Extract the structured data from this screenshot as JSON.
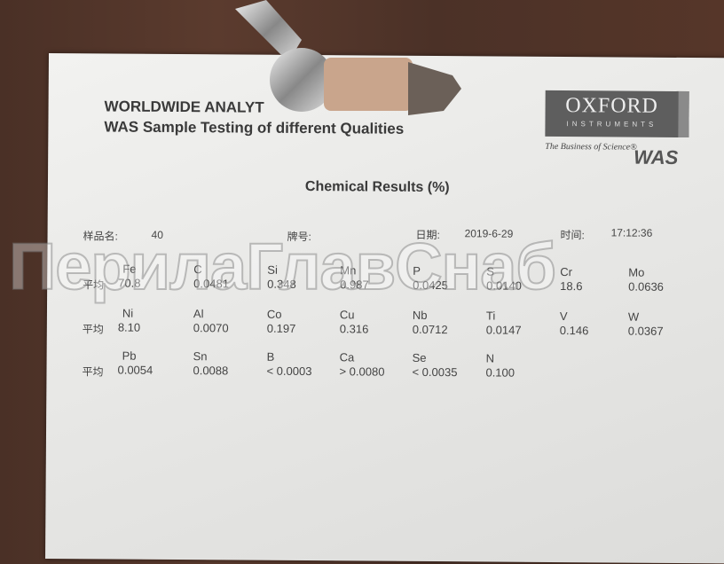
{
  "document": {
    "title_line1": "WORLDWIDE ANALYT",
    "title_line2": "WAS Sample Testing of different Qualities",
    "logo": {
      "name": "OXFORD",
      "sub": "INSTRUMENTS",
      "tagline": "The Business of Science®",
      "mark": "WAS"
    },
    "heading": "Chemical Results   (%)",
    "meta": {
      "sample_label": "样品名:",
      "sample_value": "40",
      "grade_label": "牌号:",
      "grade_value": "",
      "date_label": "日期:",
      "date_value": "2019-6-29",
      "time_label": "时间:",
      "time_value": "17:12:36"
    },
    "avg_label": "平均",
    "rows": [
      [
        {
          "el": "Fe",
          "v": "70.8"
        },
        {
          "el": "C",
          "v": "0.0481"
        },
        {
          "el": "Si",
          "v": "0.348"
        },
        {
          "el": "Mn",
          "v": "0.987"
        },
        {
          "el": "P",
          "v": "0.0425"
        },
        {
          "el": "S",
          "v": "0.0140"
        },
        {
          "el": "Cr",
          "v": "18.6"
        },
        {
          "el": "Mo",
          "v": "0.0636"
        }
      ],
      [
        {
          "el": "Ni",
          "v": "8.10"
        },
        {
          "el": "Al",
          "v": "0.0070"
        },
        {
          "el": "Co",
          "v": "0.197"
        },
        {
          "el": "Cu",
          "v": "0.316"
        },
        {
          "el": "Nb",
          "v": "0.0712"
        },
        {
          "el": "Ti",
          "v": "0.0147"
        },
        {
          "el": "V",
          "v": "0.146"
        },
        {
          "el": "W",
          "v": "0.0367"
        }
      ],
      [
        {
          "el": "Pb",
          "v": "0.0054"
        },
        {
          "el": "Sn",
          "v": "0.0088"
        },
        {
          "el": "B",
          "v": "< 0.0003"
        },
        {
          "el": "Ca",
          "v": "> 0.0080"
        },
        {
          "el": "Se",
          "v": "< 0.0035"
        },
        {
          "el": "N",
          "v": "0.100"
        }
      ]
    ]
  },
  "watermark": "ПерилаГлавСнаб"
}
